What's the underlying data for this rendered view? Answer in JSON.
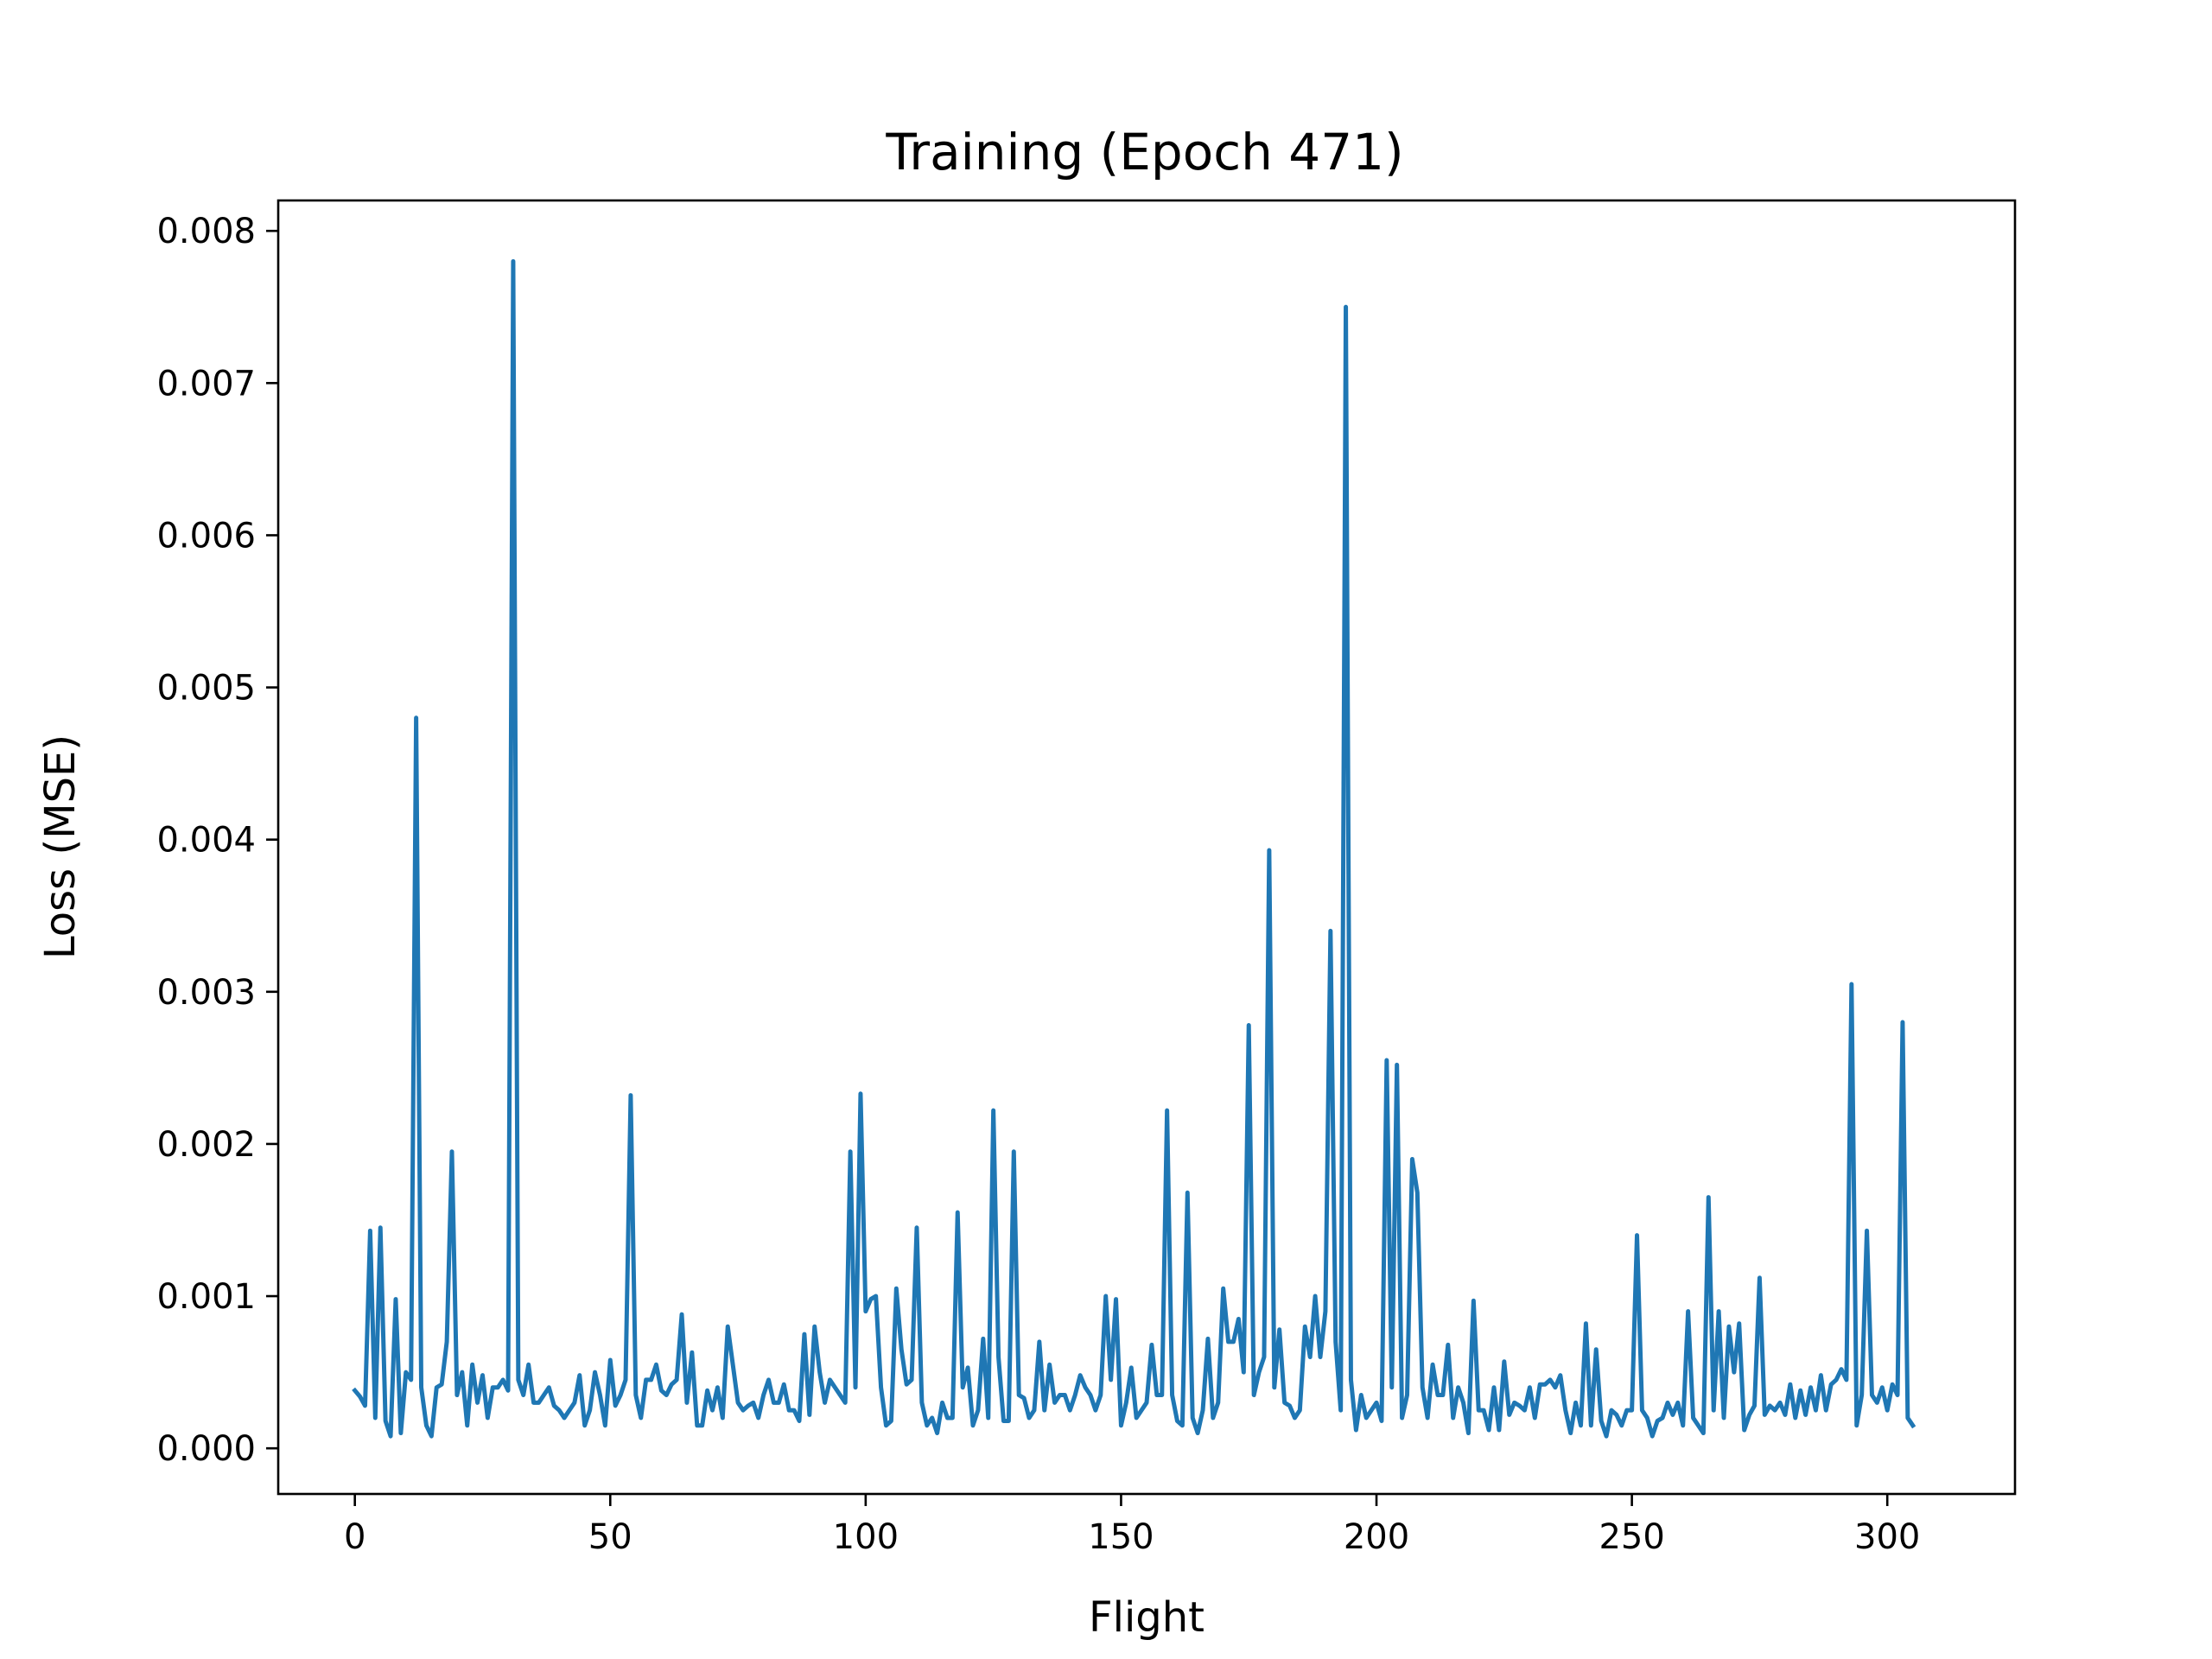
{
  "chart_data": {
    "type": "line",
    "title": "Training (Epoch 471)",
    "xlabel": "Flight",
    "ylabel": "Loss (MSE)",
    "xlim": [
      -15,
      325
    ],
    "ylim": [
      -0.0003,
      0.0082
    ],
    "xticks": [
      0,
      50,
      100,
      150,
      200,
      250,
      300
    ],
    "xtick_labels": [
      "0",
      "50",
      "100",
      "150",
      "200",
      "250",
      "300"
    ],
    "yticks": [
      0,
      0.001,
      0.002,
      0.003,
      0.004,
      0.005,
      0.006,
      0.007,
      0.008
    ],
    "ytick_labels": [
      "0.000",
      "0.001",
      "0.002",
      "0.003",
      "0.004",
      "0.005",
      "0.006",
      "0.007",
      "0.008"
    ],
    "grid": false,
    "series": [
      {
        "color": "#1f77b4",
        "x_start": 0,
        "x_step": 1,
        "values": [
          0.00038,
          0.00034,
          0.00028,
          0.00143,
          0.0002,
          0.00145,
          0.00018,
          8e-05,
          0.00098,
          0.0001,
          0.0005,
          0.00045,
          0.0048,
          0.0004,
          0.00015,
          8e-05,
          0.0004,
          0.00042,
          0.0007,
          0.00195,
          0.00035,
          0.0005,
          0.00015,
          0.00055,
          0.0003,
          0.00048,
          0.0002,
          0.0004,
          0.0004,
          0.00045,
          0.00038,
          0.0078,
          0.00045,
          0.00035,
          0.00055,
          0.0003,
          0.0003,
          0.00035,
          0.0004,
          0.00028,
          0.00025,
          0.0002,
          0.00025,
          0.0003,
          0.00048,
          0.00015,
          0.00025,
          0.0005,
          0.00035,
          0.00015,
          0.00058,
          0.00028,
          0.00035,
          0.00045,
          0.00232,
          0.00035,
          0.0002,
          0.00045,
          0.00045,
          0.00055,
          0.00038,
          0.00035,
          0.00042,
          0.00045,
          0.00088,
          0.0003,
          0.00063,
          0.00015,
          0.00015,
          0.00038,
          0.00025,
          0.0004,
          0.0002,
          0.0008,
          0.00055,
          0.0003,
          0.00025,
          0.00028,
          0.0003,
          0.0002,
          0.00035,
          0.00045,
          0.0003,
          0.0003,
          0.00042,
          0.00025,
          0.00025,
          0.00018,
          0.00075,
          0.00022,
          0.0008,
          0.0005,
          0.0003,
          0.00045,
          0.0004,
          0.00035,
          0.0003,
          0.00195,
          0.0004,
          0.00233,
          0.0009,
          0.00098,
          0.001,
          0.0004,
          0.00015,
          0.00018,
          0.00105,
          0.00065,
          0.00042,
          0.00045,
          0.00145,
          0.0003,
          0.00015,
          0.0002,
          0.0001,
          0.0003,
          0.0002,
          0.0002,
          0.00155,
          0.0004,
          0.00053,
          0.00015,
          0.00025,
          0.00072,
          0.0002,
          0.00222,
          0.0006,
          0.00018,
          0.00018,
          0.00195,
          0.00035,
          0.00033,
          0.0002,
          0.00025,
          0.0007,
          0.00025,
          0.00055,
          0.0003,
          0.00035,
          0.00035,
          0.00025,
          0.00035,
          0.00048,
          0.0004,
          0.00035,
          0.00025,
          0.00035,
          0.001,
          0.00045,
          0.00098,
          0.00015,
          0.0003,
          0.00053,
          0.0002,
          0.00025,
          0.0003,
          0.00068,
          0.00035,
          0.00035,
          0.00222,
          0.00035,
          0.00018,
          0.00015,
          0.00168,
          0.0002,
          0.0001,
          0.00025,
          0.00072,
          0.0002,
          0.0003,
          0.00105,
          0.0007,
          0.0007,
          0.00085,
          0.0005,
          0.00278,
          0.00035,
          0.0005,
          0.0006,
          0.00393,
          0.0004,
          0.00078,
          0.0003,
          0.00028,
          0.0002,
          0.00025,
          0.0008,
          0.0006,
          0.001,
          0.0006,
          0.0009,
          0.0034,
          0.0007,
          0.00025,
          0.0075,
          0.00045,
          0.00012,
          0.00035,
          0.0002,
          0.00025,
          0.0003,
          0.00018,
          0.00255,
          0.0004,
          0.00252,
          0.0002,
          0.00035,
          0.0019,
          0.00168,
          0.0004,
          0.0002,
          0.00055,
          0.00035,
          0.00035,
          0.00068,
          0.0002,
          0.0004,
          0.0003,
          0.0001,
          0.00097,
          0.00025,
          0.00025,
          0.00012,
          0.0004,
          0.00012,
          0.00057,
          0.00022,
          0.0003,
          0.00028,
          0.00025,
          0.0004,
          0.0002,
          0.00042,
          0.00042,
          0.00045,
          0.0004,
          0.00048,
          0.00025,
          0.0001,
          0.0003,
          0.00015,
          0.00082,
          0.00015,
          0.00065,
          0.00018,
          8e-05,
          0.00025,
          0.00022,
          0.00015,
          0.00025,
          0.00025,
          0.0014,
          0.00025,
          0.0002,
          8e-05,
          0.00018,
          0.0002,
          0.0003,
          0.00022,
          0.0003,
          0.00015,
          0.0009,
          0.0002,
          0.00015,
          0.0001,
          0.00165,
          0.00025,
          0.0009,
          0.0002,
          0.0008,
          0.0005,
          0.00082,
          0.00012,
          0.00022,
          0.00028,
          0.00112,
          0.00022,
          0.00028,
          0.00025,
          0.0003,
          0.00022,
          0.00042,
          0.0002,
          0.00038,
          0.00022,
          0.0004,
          0.00025,
          0.00048,
          0.00025,
          0.00042,
          0.00045,
          0.00052,
          0.00045,
          0.00305,
          0.00015,
          0.00035,
          0.00143,
          0.00035,
          0.0003,
          0.0004,
          0.00025,
          0.00042,
          0.00035,
          0.0028,
          0.0002,
          0.00015
        ]
      }
    ]
  }
}
